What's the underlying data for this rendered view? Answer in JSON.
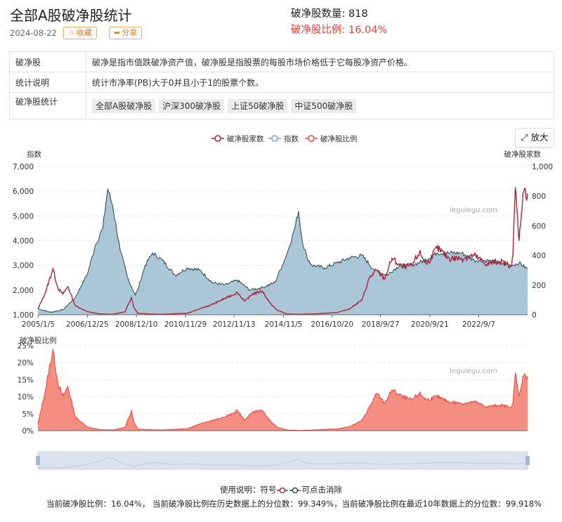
{
  "header": {
    "title": "全部A股破净股统计",
    "date": "2024-08-22",
    "favorite_label": "收藏",
    "share_label": "分享",
    "count_text": "破净股数量: 818",
    "ratio_text": "破净股比例: 16.04%"
  },
  "info": {
    "rows": [
      {
        "key": "破净股",
        "value": "破净是指市值跌破净资产值，破净股是指股票的每股市场价格低于它每股净资产价格。"
      },
      {
        "key": "统计说明",
        "value": "统计市净率(PB)大于0并且小于1的股票个数。"
      },
      {
        "key": "破净股统计",
        "chips": [
          "全部A股破净股",
          "沪深300破净股",
          "上证50破净股",
          "中证500破净股"
        ]
      }
    ]
  },
  "zoom_label": "放大",
  "colors": {
    "count": "#a5283c",
    "index_line": "#2f4554",
    "index_fill": "#8fb3c8",
    "ratio": "#e8453c",
    "ratio_fill": "#f27a6c"
  },
  "chart_data": [
    {
      "type": "line",
      "legend": [
        "破净股家数",
        "指数",
        "破净股比例"
      ],
      "legend_position": "top-center",
      "y_left_label": "指数",
      "y_right_label": "破净股家数",
      "ylim_left": [
        1000,
        7000
      ],
      "ylim_right": [
        0,
        1000
      ],
      "y_left_ticks": [
        "1,000",
        "2,000",
        "3,000",
        "4,000",
        "5,000",
        "6,000",
        "7,000"
      ],
      "y_right_ticks": [
        "0",
        "200",
        "400",
        "600",
        "800",
        "1,000"
      ],
      "x_ticks": [
        "2005/1/5",
        "2006/12/25",
        "2008/12/10",
        "2010/11/29",
        "2012/11/13",
        "2014/11/5",
        "2016/10/20",
        "2018/9/27",
        "2020/9/21",
        "2022/9/7"
      ],
      "watermark": "legulegu.com",
      "series": [
        {
          "name": "指数",
          "axis": "left",
          "x": [
            2005.0,
            2005.5,
            2006.0,
            2006.5,
            2007.0,
            2007.3,
            2007.6,
            2007.8,
            2008.0,
            2008.3,
            2008.6,
            2008.9,
            2009.0,
            2009.3,
            2009.6,
            2010.0,
            2010.5,
            2011.0,
            2011.5,
            2012.0,
            2012.5,
            2013.0,
            2013.5,
            2014.0,
            2014.5,
            2014.8,
            2015.0,
            2015.3,
            2015.45,
            2015.6,
            2015.8,
            2016.0,
            2016.5,
            2017.0,
            2017.5,
            2018.0,
            2018.5,
            2019.0,
            2019.5,
            2020.0,
            2020.5,
            2021.0,
            2021.5,
            2022.0,
            2022.5,
            2023.0,
            2023.5,
            2024.0,
            2024.3,
            2024.64
          ],
          "y": [
            1250,
            1100,
            1200,
            1700,
            2700,
            3800,
            4500,
            6100,
            5400,
            3600,
            2500,
            1800,
            2000,
            3000,
            3500,
            3200,
            2600,
            2900,
            2800,
            2300,
            2200,
            2400,
            2000,
            2100,
            2300,
            3000,
            3500,
            4500,
            5200,
            4000,
            3300,
            3000,
            2900,
            3100,
            3300,
            3400,
            2800,
            2600,
            3000,
            3000,
            3200,
            3500,
            3500,
            3500,
            3200,
            3200,
            3100,
            3000,
            3100,
            2850
          ]
        },
        {
          "name": "破净股家数",
          "axis": "right",
          "x": [
            2005.0,
            2005.3,
            2005.6,
            2005.8,
            2006.0,
            2006.2,
            2006.5,
            2007.0,
            2007.5,
            2008.0,
            2008.5,
            2008.75,
            2008.85,
            2009.0,
            2009.5,
            2010.0,
            2011.0,
            2011.5,
            2012.0,
            2012.5,
            2013.0,
            2013.3,
            2013.6,
            2014.0,
            2014.3,
            2014.6,
            2015.0,
            2015.5,
            2016.0,
            2016.5,
            2017.0,
            2017.5,
            2018.0,
            2018.3,
            2018.6,
            2018.9,
            2019.2,
            2019.6,
            2020.0,
            2020.3,
            2020.6,
            2021.0,
            2021.5,
            2022.0,
            2022.5,
            2023.0,
            2023.5,
            2024.0,
            2024.05,
            2024.15,
            2024.3,
            2024.45,
            2024.64
          ],
          "y": [
            40,
            150,
            310,
            180,
            140,
            190,
            60,
            20,
            5,
            3,
            20,
            120,
            50,
            10,
            5,
            3,
            10,
            40,
            70,
            110,
            150,
            90,
            140,
            160,
            80,
            30,
            5,
            3,
            5,
            10,
            15,
            40,
            100,
            250,
            300,
            240,
            380,
            320,
            330,
            420,
            340,
            450,
            380,
            380,
            400,
            340,
            360,
            330,
            400,
            860,
            500,
            820,
            818
          ]
        }
      ]
    },
    {
      "type": "area",
      "series_name": "破净股比例",
      "y_label": "破净股比例",
      "ylim": [
        0,
        25
      ],
      "y_ticks": [
        "0%",
        "5%",
        "10%",
        "15%",
        "20%",
        "25%"
      ],
      "watermark": "legulegu.com",
      "x": [
        2005.0,
        2005.3,
        2005.6,
        2005.8,
        2006.0,
        2006.2,
        2006.5,
        2007.0,
        2007.5,
        2008.0,
        2008.5,
        2008.75,
        2008.85,
        2009.0,
        2009.5,
        2010.0,
        2011.0,
        2011.5,
        2012.0,
        2012.5,
        2013.0,
        2013.3,
        2013.6,
        2014.0,
        2014.3,
        2014.6,
        2015.0,
        2015.5,
        2016.0,
        2016.5,
        2017.0,
        2017.5,
        2018.0,
        2018.3,
        2018.6,
        2018.9,
        2019.2,
        2019.6,
        2020.0,
        2020.3,
        2020.6,
        2021.0,
        2021.5,
        2022.0,
        2022.5,
        2023.0,
        2023.5,
        2024.0,
        2024.05,
        2024.15,
        2024.3,
        2024.45,
        2024.64
      ],
      "y": [
        2,
        12,
        24,
        14,
        10,
        13,
        4,
        1,
        0.3,
        0.2,
        1,
        6,
        2.5,
        0.5,
        0.3,
        0.2,
        0.6,
        2,
        3,
        4,
        6,
        3,
        5.5,
        6,
        3,
        1,
        0.2,
        0.1,
        0.2,
        0.4,
        0.5,
        1.2,
        3,
        7,
        11,
        8,
        12,
        10,
        9,
        11,
        9,
        10,
        8.5,
        8,
        8.5,
        7,
        7.5,
        7,
        8,
        17,
        10,
        16,
        16.04
      ]
    }
  ],
  "slider": {
    "start": 2005.0,
    "end": 2024.64
  },
  "footer": {
    "usage": "使用说明：符号",
    "usage_tail": "可点击消除",
    "summary": "当前破净股比例：16.04%， 当前破净股比例在历史数据上的分位数：99.349%，当前破净股比例在最近10年数据上的分位数：99.918%"
  }
}
